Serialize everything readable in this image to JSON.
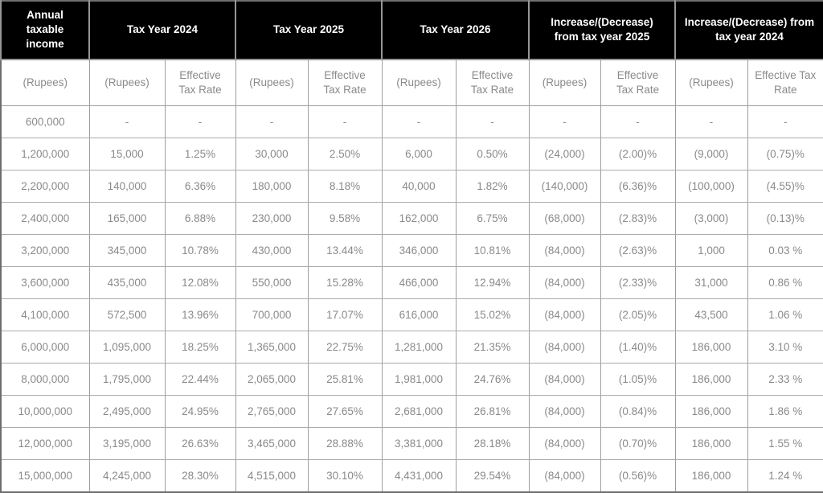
{
  "chart_data": {
    "type": "table",
    "column_groups": [
      {
        "label": "Annual taxable income",
        "colspan": 1
      },
      {
        "label": "Tax Year 2024",
        "colspan": 2
      },
      {
        "label": "Tax Year 2025",
        "colspan": 2
      },
      {
        "label": "Tax Year 2026",
        "colspan": 2
      },
      {
        "label": "Increase/(Decrease) from tax year 2025",
        "colspan": 2
      },
      {
        "label": "Increase/(Decrease) from tax year 2024",
        "colspan": 2
      }
    ],
    "sub_headers": [
      "(Rupees)",
      "(Rupees)",
      "Effective Tax Rate",
      "(Rupees)",
      "Effective Tax Rate",
      "(Rupees)",
      "Effective Tax Rate",
      "(Rupees)",
      "Effective Tax Rate",
      "(Rupees)",
      "Effective Tax Rate"
    ],
    "rows": [
      [
        "600,000",
        "-",
        "-",
        "-",
        "-",
        "-",
        "-",
        "-",
        "-",
        "-",
        "-"
      ],
      [
        "1,200,000",
        "15,000",
        "1.25%",
        "30,000",
        "2.50%",
        "6,000",
        "0.50%",
        "(24,000)",
        "(2.00)%",
        "(9,000)",
        "(0.75)%"
      ],
      [
        "2,200,000",
        "140,000",
        "6.36%",
        "180,000",
        "8.18%",
        "40,000",
        "1.82%",
        "(140,000)",
        "(6.36)%",
        "(100,000)",
        "(4.55)%"
      ],
      [
        "2,400,000",
        "165,000",
        "6.88%",
        "230,000",
        "9.58%",
        "162,000",
        "6.75%",
        "(68,000)",
        "(2.83)%",
        "(3,000)",
        "(0.13)%"
      ],
      [
        "3,200,000",
        "345,000",
        "10.78%",
        "430,000",
        "13.44%",
        "346,000",
        "10.81%",
        "(84,000)",
        "(2.63)%",
        "1,000",
        "0.03 %"
      ],
      [
        "3,600,000",
        "435,000",
        "12.08%",
        "550,000",
        "15.28%",
        "466,000",
        "12.94%",
        "(84,000)",
        "(2.33)%",
        "31,000",
        "0.86 %"
      ],
      [
        "4,100,000",
        "572,500",
        "13.96%",
        "700,000",
        "17.07%",
        "616,000",
        "15.02%",
        "(84,000)",
        "(2.05)%",
        "43,500",
        "1.06 %"
      ],
      [
        "6,000,000",
        "1,095,000",
        "18.25%",
        "1,365,000",
        "22.75%",
        "1,281,000",
        "21.35%",
        "(84,000)",
        "(1.40)%",
        "186,000",
        "3.10 %"
      ],
      [
        "8,000,000",
        "1,795,000",
        "22.44%",
        "2,065,000",
        "25.81%",
        "1,981,000",
        "24.76%",
        "(84,000)",
        "(1.05)%",
        "186,000",
        "2.33 %"
      ],
      [
        "10,000,000",
        "2,495,000",
        "24.95%",
        "2,765,000",
        "27.65%",
        "2,681,000",
        "26.81%",
        "(84,000)",
        "(0.84)%",
        "186,000",
        "1.86 %"
      ],
      [
        "12,000,000",
        "3,195,000",
        "26.63%",
        "3,465,000",
        "28.88%",
        "3,381,000",
        "28.18%",
        "(84,000)",
        "(0.70)%",
        "186,000",
        "1.55 %"
      ],
      [
        "15,000,000",
        "4,245,000",
        "28.30%",
        "4,515,000",
        "30.10%",
        "4,431,000",
        "29.54%",
        "(84,000)",
        "(0.56)%",
        "186,000",
        "1.24 %"
      ]
    ],
    "layout": {
      "grid": true,
      "header_style": "black-banner-white-text",
      "body_text_align": "center"
    }
  },
  "colors": {
    "header_bg": "#000000",
    "header_text": "#ffffff",
    "cell_text": "#8a8a8a",
    "grid_border": "#9e9e9e",
    "outer_border": "#6e6e6e",
    "background": "#ffffff"
  }
}
